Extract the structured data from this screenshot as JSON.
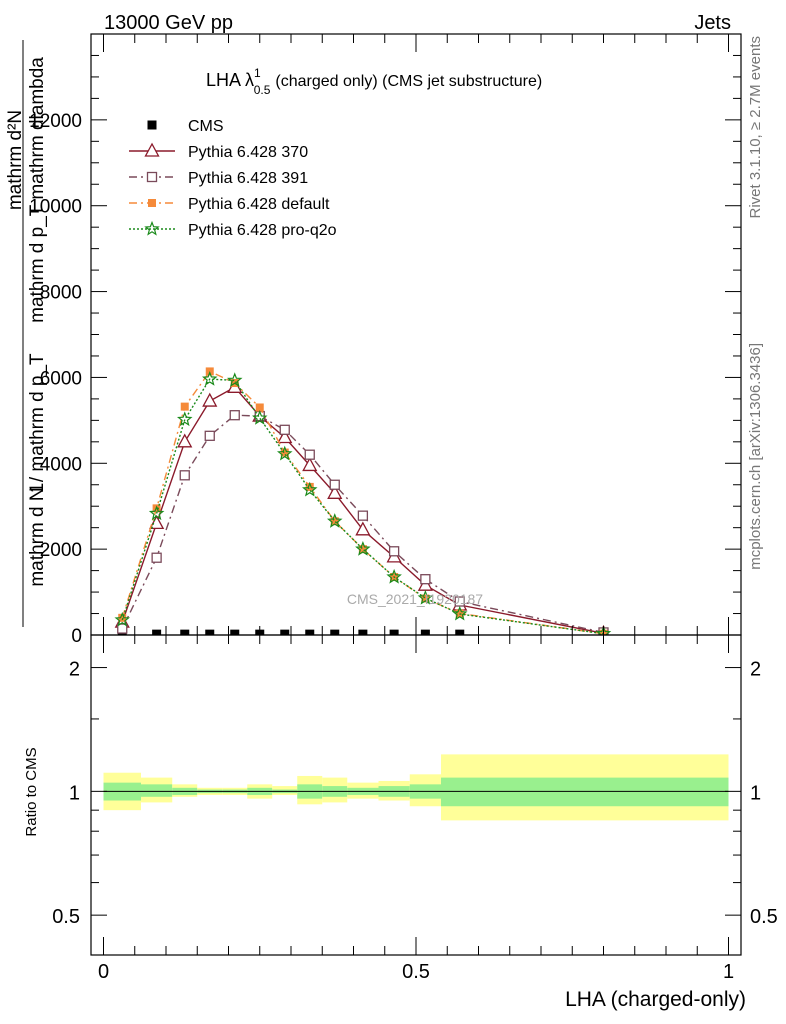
{
  "header": {
    "left": "13000 GeV pp",
    "right": "Jets"
  },
  "side_labels": {
    "rivet": "Rivet 3.1.10, ≥ 2.7M events",
    "mcplots": "mcplots.cern.ch [arXiv:1306.3436]"
  },
  "watermark": "CMS_2021_I1920187",
  "colors": {
    "cms": "#000000",
    "p370": "#8b1a2b",
    "p391": "#7a4a5a",
    "pdefault": "#f58a3a",
    "pq2o": "#1a8a1a",
    "band_inner": "#99f08e",
    "band_outer": "#ffff99"
  },
  "chart_data": [
    {
      "type": "line",
      "title": "LHA λ_{0.5}^{1} (charged only) (CMS jet substructure)",
      "title_parts": {
        "main": "LHA λ",
        "sup": "1",
        "sub": "0.5",
        "rest": "(charged only) (CMS jet substructure)"
      },
      "ylabel_numerator": "mathrm d²N",
      "ylabel_denominator": "mathrm d p_T mathrm dlambda",
      "ylabel_factor_num": "1",
      "ylabel_factor_den": "mathrm d N / mathrm d p_T",
      "xlim": [
        -0.02,
        1.02
      ],
      "ylim": [
        0,
        14000
      ],
      "yticks": [
        0,
        2000,
        4000,
        6000,
        8000,
        10000,
        12000
      ],
      "ytick_labels": [
        "0",
        "2000",
        "4000",
        "6000",
        "8000",
        "10000",
        "12000"
      ],
      "legend_position": "top-left",
      "series": [
        {
          "name": "CMS",
          "marker": "square",
          "x": [
            0.03,
            0.085,
            0.13,
            0.17,
            0.21,
            0.25,
            0.29,
            0.33,
            0.37,
            0.415,
            0.465,
            0.515,
            0.57
          ],
          "y": [
            20,
            20,
            20,
            20,
            20,
            20,
            20,
            20,
            20,
            20,
            20,
            20,
            20
          ]
        },
        {
          "name": "Pythia 6.428 370",
          "marker": "triangle",
          "x": [
            0.03,
            0.085,
            0.13,
            0.17,
            0.21,
            0.25,
            0.29,
            0.33,
            0.37,
            0.415,
            0.465,
            0.515,
            0.57,
            0.8
          ],
          "y": [
            300,
            2600,
            4500,
            5450,
            5770,
            5100,
            4600,
            3950,
            3300,
            2450,
            1820,
            1160,
            700,
            40
          ]
        },
        {
          "name": "Pythia 6.428 391",
          "marker": "open-square",
          "x": [
            0.03,
            0.085,
            0.13,
            0.17,
            0.21,
            0.25,
            0.29,
            0.33,
            0.37,
            0.415,
            0.465,
            0.515,
            0.57,
            0.8
          ],
          "y": [
            150,
            1800,
            3720,
            4640,
            5120,
            5100,
            4780,
            4200,
            3500,
            2780,
            1950,
            1300,
            780,
            60
          ]
        },
        {
          "name": "Pythia 6.428 default",
          "marker": "filled-square",
          "x": [
            0.03,
            0.085,
            0.13,
            0.17,
            0.21,
            0.25,
            0.29,
            0.33,
            0.37,
            0.415,
            0.465,
            0.515,
            0.57,
            0.8
          ],
          "y": [
            400,
            2950,
            5320,
            6140,
            5870,
            5300,
            4250,
            3450,
            2650,
            2000,
            1350,
            850,
            500,
            30
          ]
        },
        {
          "name": "Pythia 6.428 pro-q2o",
          "marker": "star",
          "x": [
            0.03,
            0.085,
            0.13,
            0.17,
            0.21,
            0.25,
            0.29,
            0.33,
            0.37,
            0.415,
            0.465,
            0.515,
            0.57,
            0.8
          ],
          "y": [
            350,
            2830,
            5020,
            5960,
            5930,
            5050,
            4220,
            3380,
            2650,
            2000,
            1350,
            860,
            490,
            30
          ]
        }
      ]
    },
    {
      "type": "area",
      "ylabel": "Ratio to CMS",
      "xlabel": "LHA (charged-only)",
      "ylog": true,
      "ylim": [
        0.4,
        2.4
      ],
      "yticks": [
        0.5,
        1,
        2
      ],
      "ytick_labels": [
        "0.5",
        "1",
        "2"
      ],
      "xticks": [
        0,
        0.5,
        1
      ],
      "xtick_labels": [
        "0",
        "0.5",
        "1"
      ],
      "bin_edges": [
        0,
        0.06,
        0.11,
        0.15,
        0.19,
        0.23,
        0.27,
        0.31,
        0.35,
        0.39,
        0.44,
        0.49,
        0.54,
        0.6,
        1.0
      ],
      "inner_low": [
        0.95,
        0.97,
        0.98,
        0.99,
        0.99,
        0.98,
        0.99,
        0.96,
        0.97,
        0.98,
        0.97,
        0.96,
        0.92,
        0.92
      ],
      "inner_high": [
        1.05,
        1.04,
        1.02,
        1.01,
        1.01,
        1.02,
        1.01,
        1.04,
        1.03,
        1.02,
        1.03,
        1.04,
        1.08,
        1.08
      ],
      "outer_low": [
        0.9,
        0.94,
        0.97,
        0.98,
        0.98,
        0.96,
        0.98,
        0.93,
        0.94,
        0.96,
        0.95,
        0.92,
        0.85,
        0.85
      ],
      "outer_high": [
        1.11,
        1.08,
        1.04,
        1.02,
        1.02,
        1.04,
        1.03,
        1.09,
        1.08,
        1.05,
        1.06,
        1.1,
        1.23,
        1.23
      ],
      "reference": 1
    }
  ]
}
